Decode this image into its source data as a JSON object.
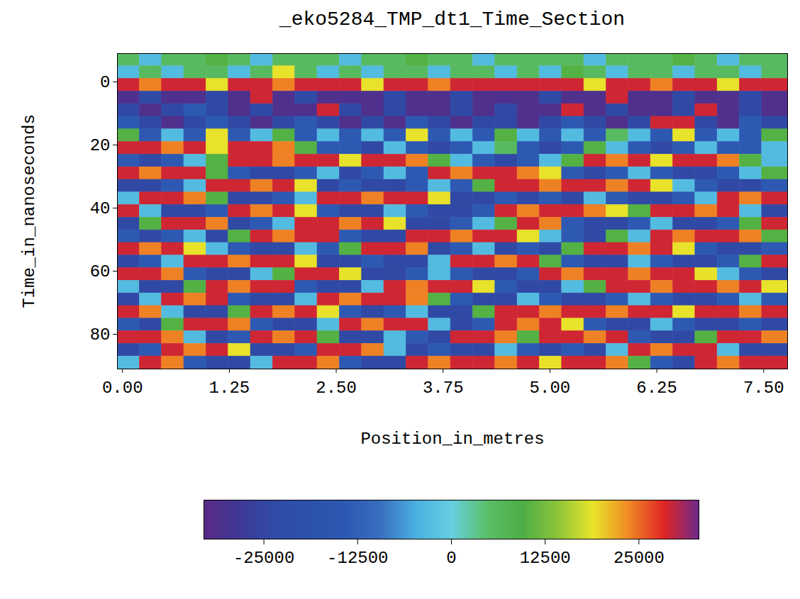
{
  "chart_data": {
    "type": "heatmap",
    "title": "_eko5284_TMP_dt1_Time_Section",
    "x_label": "Position_in_metres",
    "y_label": "Time_in_nanoseconds",
    "xlim": [
      -0.06,
      7.78
    ],
    "ylim": [
      -9,
      91
    ],
    "xticks": [
      {
        "value": 0,
        "label": "0.00"
      },
      {
        "value": 1.25,
        "label": "1.25"
      },
      {
        "value": 2.5,
        "label": "2.50"
      },
      {
        "value": 3.75,
        "label": "3.75"
      },
      {
        "value": 5,
        "label": "5.00"
      },
      {
        "value": 6.25,
        "label": "6.25"
      },
      {
        "value": 7.5,
        "label": "7.50"
      }
    ],
    "yticks": [
      0,
      20,
      40,
      60,
      80
    ],
    "x": [
      0.07,
      0.33,
      0.59,
      0.85,
      1.11,
      1.37,
      1.63,
      1.89,
      2.15,
      2.41,
      2.67,
      2.93,
      3.19,
      3.45,
      3.71,
      3.97,
      4.23,
      4.49,
      4.75,
      5.01,
      5.27,
      5.53,
      5.79,
      6.05,
      6.31,
      6.57,
      6.83,
      7.09,
      7.35,
      7.61
    ],
    "y": [
      -7,
      -3,
      1,
      5,
      9,
      13,
      17,
      21,
      25,
      29,
      33,
      37,
      41,
      45,
      49,
      53,
      57,
      61,
      65,
      69,
      73,
      77,
      81,
      85,
      89
    ],
    "cells": [
      [
        6000,
        -3000,
        6000,
        6000,
        10000,
        6000,
        -3000,
        6000,
        6000,
        6000,
        -3000,
        6000,
        6000,
        10000,
        6000,
        6000,
        -3000,
        6000,
        6000,
        6000,
        6000,
        -3000,
        6000,
        6000,
        6000,
        10000,
        6000,
        -3000,
        6000,
        6000
      ],
      [
        -3000,
        6000,
        -3000,
        6000,
        6000,
        -3000,
        6000,
        19000,
        6000,
        -3000,
        6000,
        -3000,
        6000,
        6000,
        -3000,
        6000,
        6000,
        -3000,
        6000,
        -3000,
        10000,
        6000,
        -3000,
        6000,
        6000,
        -3000,
        6000,
        6000,
        -3000,
        6000
      ],
      [
        29000,
        24000,
        29000,
        29000,
        19000,
        29000,
        29000,
        24000,
        29000,
        29000,
        29000,
        19000,
        29000,
        29000,
        24000,
        29000,
        29000,
        29000,
        29000,
        29000,
        29000,
        19000,
        29000,
        29000,
        24000,
        29000,
        29000,
        19000,
        29000,
        29000
      ],
      [
        -31000,
        -24000,
        -31000,
        -31000,
        -24000,
        -31000,
        29000,
        -31000,
        -24000,
        -31000,
        -31000,
        -31000,
        -24000,
        -31000,
        -31000,
        -24000,
        -31000,
        -31000,
        -31000,
        -24000,
        -31000,
        -31000,
        29000,
        -31000,
        -31000,
        -24000,
        -31000,
        -31000,
        -24000,
        -31000
      ],
      [
        -24000,
        -31000,
        -24000,
        -14000,
        -24000,
        -31000,
        -24000,
        -31000,
        -31000,
        29000,
        -24000,
        -31000,
        -24000,
        -31000,
        -31000,
        -24000,
        -31000,
        -24000,
        -31000,
        -31000,
        29000,
        -31000,
        -24000,
        -31000,
        -31000,
        -24000,
        29000,
        -31000,
        -24000,
        -31000
      ],
      [
        -14000,
        -24000,
        -31000,
        -24000,
        -14000,
        -24000,
        -31000,
        -24000,
        -14000,
        -24000,
        -31000,
        -24000,
        -31000,
        -14000,
        -24000,
        -31000,
        -24000,
        -24000,
        -31000,
        -24000,
        -14000,
        -24000,
        -31000,
        -24000,
        29000,
        29000,
        -24000,
        -31000,
        -14000,
        -24000
      ],
      [
        10000,
        -14000,
        -3000,
        -14000,
        19000,
        -14000,
        -3000,
        10000,
        -14000,
        -3000,
        -14000,
        -3000,
        -14000,
        19000,
        -14000,
        -3000,
        -14000,
        10000,
        -3000,
        -14000,
        -3000,
        -14000,
        6000,
        -3000,
        -14000,
        19000,
        -14000,
        -3000,
        -14000,
        10000
      ],
      [
        29000,
        29000,
        24000,
        29000,
        19000,
        29000,
        29000,
        24000,
        10000,
        -14000,
        -14000,
        -24000,
        -3000,
        -14000,
        -24000,
        -14000,
        -3000,
        6000,
        -14000,
        -24000,
        -14000,
        10000,
        -3000,
        -14000,
        -24000,
        -14000,
        -3000,
        -14000,
        -14000,
        -3000
      ],
      [
        -14000,
        -24000,
        -14000,
        -3000,
        10000,
        29000,
        29000,
        24000,
        29000,
        29000,
        19000,
        29000,
        29000,
        24000,
        10000,
        -3000,
        -14000,
        -24000,
        -14000,
        -3000,
        10000,
        29000,
        24000,
        29000,
        19000,
        29000,
        29000,
        24000,
        10000,
        -3000
      ],
      [
        29000,
        24000,
        29000,
        29000,
        10000,
        -14000,
        -24000,
        -24000,
        -14000,
        -3000,
        -24000,
        -14000,
        -3000,
        -14000,
        29000,
        24000,
        29000,
        29000,
        24000,
        19000,
        -14000,
        -24000,
        -14000,
        -3000,
        -14000,
        -24000,
        -24000,
        -14000,
        -3000,
        10000
      ],
      [
        -24000,
        -24000,
        -14000,
        -3000,
        29000,
        29000,
        24000,
        29000,
        19000,
        -24000,
        -14000,
        -24000,
        -24000,
        -14000,
        -3000,
        -14000,
        10000,
        29000,
        29000,
        24000,
        29000,
        29000,
        24000,
        29000,
        19000,
        -3000,
        -14000,
        -24000,
        -24000,
        -14000
      ],
      [
        -3000,
        29000,
        29000,
        24000,
        10000,
        -24000,
        -24000,
        -14000,
        -3000,
        29000,
        29000,
        24000,
        29000,
        29000,
        19000,
        -24000,
        -24000,
        -14000,
        -24000,
        -14000,
        -24000,
        -3000,
        -14000,
        -24000,
        -24000,
        -14000,
        -3000,
        29000,
        24000,
        29000
      ],
      [
        29000,
        -3000,
        -24000,
        -24000,
        -14000,
        29000,
        24000,
        29000,
        19000,
        -14000,
        -24000,
        -24000,
        -3000,
        -14000,
        -24000,
        -24000,
        -14000,
        29000,
        24000,
        29000,
        29000,
        24000,
        19000,
        10000,
        29000,
        29000,
        24000,
        29000,
        -3000,
        -24000
      ],
      [
        -24000,
        10000,
        29000,
        29000,
        24000,
        -24000,
        -14000,
        -3000,
        29000,
        29000,
        24000,
        29000,
        19000,
        -24000,
        -24000,
        -14000,
        -3000,
        10000,
        29000,
        24000,
        -14000,
        -24000,
        -24000,
        -14000,
        -3000,
        -24000,
        -24000,
        -14000,
        10000,
        29000
      ],
      [
        -14000,
        -24000,
        -14000,
        -3000,
        -24000,
        10000,
        29000,
        24000,
        29000,
        29000,
        -14000,
        -24000,
        -24000,
        29000,
        29000,
        24000,
        29000,
        29000,
        19000,
        -3000,
        -14000,
        -24000,
        10000,
        -3000,
        29000,
        24000,
        29000,
        29000,
        24000,
        10000
      ],
      [
        29000,
        24000,
        29000,
        19000,
        -3000,
        -14000,
        -24000,
        -24000,
        -3000,
        -14000,
        10000,
        29000,
        29000,
        24000,
        -24000,
        -14000,
        -3000,
        -24000,
        -14000,
        -24000,
        10000,
        29000,
        29000,
        24000,
        29000,
        19000,
        -14000,
        -24000,
        -24000,
        -14000
      ],
      [
        -24000,
        -14000,
        -3000,
        29000,
        29000,
        24000,
        29000,
        29000,
        19000,
        -24000,
        -24000,
        -14000,
        -24000,
        -24000,
        -3000,
        29000,
        29000,
        24000,
        29000,
        10000,
        -14000,
        -24000,
        -24000,
        -3000,
        -14000,
        -24000,
        -24000,
        -14000,
        10000,
        29000
      ],
      [
        29000,
        29000,
        24000,
        -14000,
        -24000,
        -24000,
        -3000,
        10000,
        29000,
        29000,
        19000,
        -24000,
        -24000,
        -14000,
        -3000,
        -14000,
        -24000,
        -24000,
        -14000,
        29000,
        24000,
        29000,
        29000,
        24000,
        29000,
        29000,
        19000,
        -3000,
        -14000,
        -24000
      ],
      [
        -3000,
        -24000,
        -24000,
        10000,
        29000,
        24000,
        29000,
        29000,
        -14000,
        -24000,
        -24000,
        -3000,
        29000,
        24000,
        29000,
        29000,
        19000,
        -14000,
        -24000,
        -24000,
        -3000,
        10000,
        29000,
        29000,
        24000,
        29000,
        29000,
        24000,
        29000,
        19000
      ],
      [
        -24000,
        -3000,
        29000,
        24000,
        29000,
        -14000,
        -24000,
        -24000,
        -3000,
        29000,
        24000,
        29000,
        29000,
        24000,
        10000,
        -14000,
        -24000,
        -24000,
        -3000,
        -14000,
        -24000,
        -24000,
        -14000,
        -3000,
        -14000,
        -24000,
        -24000,
        -14000,
        -3000,
        -14000
      ],
      [
        29000,
        24000,
        -3000,
        -24000,
        -24000,
        10000,
        29000,
        24000,
        29000,
        19000,
        -14000,
        -24000,
        -14000,
        -3000,
        -24000,
        -24000,
        10000,
        29000,
        29000,
        24000,
        29000,
        29000,
        24000,
        29000,
        29000,
        19000,
        29000,
        29000,
        24000,
        29000
      ],
      [
        -14000,
        -24000,
        10000,
        29000,
        29000,
        24000,
        -14000,
        -24000,
        -24000,
        -3000,
        29000,
        24000,
        29000,
        29000,
        -3000,
        -24000,
        -14000,
        29000,
        24000,
        29000,
        19000,
        -14000,
        -24000,
        -24000,
        -3000,
        -14000,
        -24000,
        -24000,
        -14000,
        -24000
      ],
      [
        29000,
        29000,
        24000,
        -3000,
        -24000,
        -14000,
        29000,
        24000,
        29000,
        10000,
        -24000,
        -24000,
        -3000,
        -14000,
        -24000,
        29000,
        29000,
        24000,
        10000,
        29000,
        29000,
        24000,
        29000,
        -14000,
        -24000,
        -24000,
        10000,
        29000,
        29000,
        24000
      ],
      [
        -24000,
        -14000,
        29000,
        24000,
        29000,
        19000,
        -24000,
        -24000,
        -14000,
        29000,
        29000,
        24000,
        -3000,
        -24000,
        -14000,
        -24000,
        -24000,
        -3000,
        -14000,
        -24000,
        -14000,
        -24000,
        -3000,
        29000,
        24000,
        29000,
        29000,
        -3000,
        -24000,
        -24000
      ],
      [
        -3000,
        29000,
        24000,
        -14000,
        -24000,
        -24000,
        -3000,
        29000,
        29000,
        24000,
        -14000,
        -24000,
        -24000,
        29000,
        24000,
        29000,
        29000,
        24000,
        29000,
        19000,
        29000,
        29000,
        24000,
        10000,
        -14000,
        -24000,
        29000,
        24000,
        29000,
        29000
      ]
    ],
    "colorbar": {
      "range": [
        -33000,
        33000
      ],
      "ticks": [
        -25000,
        -12500,
        0,
        12500,
        25000
      ],
      "colors": [
        "#5b2a86",
        "#3f3896",
        "#2f4ba6",
        "#2c52ad",
        "#2d58b3",
        "#3a6fc0",
        "#4ab0e0",
        "#66cfe0",
        "#5cbf6a",
        "#4cae45",
        "#8cc43a",
        "#e8e52a",
        "#f08a25",
        "#e02525",
        "#6d2a8a"
      ]
    }
  }
}
